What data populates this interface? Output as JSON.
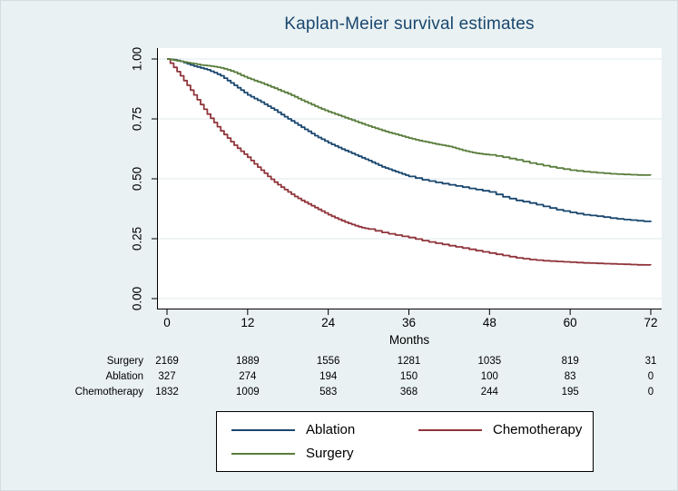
{
  "chart_data": {
    "type": "line",
    "subtype": "kaplan-meier-step",
    "title": "Kaplan-Meier survival estimates",
    "xlabel": "Months",
    "ylabel": "",
    "xlim": [
      0,
      72
    ],
    "ylim": [
      0.0,
      1.0
    ],
    "xticks": [
      0,
      12,
      24,
      36,
      48,
      60,
      72
    ],
    "yticks": [
      "0.00",
      "0.25",
      "0.50",
      "0.75",
      "1.00"
    ],
    "grid": "horizontal",
    "legend_position": "bottom-center",
    "colors": {
      "figure_background": "#e9f1f2",
      "plot_background": "#ffffff",
      "gridline": "#dfeaed",
      "axis": "#000000",
      "title": "#1a476f"
    },
    "series": [
      {
        "name": "Ablation",
        "color": "#1a476f",
        "x": [
          0,
          1,
          2,
          3,
          4,
          5,
          6,
          7,
          8,
          9,
          10,
          11,
          12,
          13,
          14,
          15,
          16,
          17,
          18,
          19,
          20,
          21,
          22,
          23,
          24,
          25,
          26,
          27,
          28,
          29,
          30,
          31,
          32,
          33,
          34,
          35,
          36,
          38,
          40,
          42,
          44,
          46,
          48,
          50,
          52,
          54,
          56,
          58,
          60,
          62,
          64,
          66,
          68,
          70,
          72
        ],
        "y": [
          1.0,
          0.997,
          0.99,
          0.98,
          0.97,
          0.963,
          0.955,
          0.943,
          0.93,
          0.91,
          0.89,
          0.87,
          0.85,
          0.835,
          0.82,
          0.803,
          0.787,
          0.768,
          0.75,
          0.733,
          0.715,
          0.698,
          0.68,
          0.665,
          0.65,
          0.637,
          0.624,
          0.612,
          0.6,
          0.588,
          0.576,
          0.563,
          0.55,
          0.54,
          0.53,
          0.52,
          0.51,
          0.496,
          0.485,
          0.475,
          0.465,
          0.455,
          0.445,
          0.425,
          0.41,
          0.399,
          0.385,
          0.371,
          0.36,
          0.35,
          0.344,
          0.336,
          0.33,
          0.325,
          0.32
        ]
      },
      {
        "name": "Chemotherapy",
        "color": "#90353b",
        "x": [
          0,
          1,
          2,
          3,
          4,
          5,
          6,
          7,
          8,
          9,
          10,
          11,
          12,
          13,
          14,
          15,
          16,
          17,
          18,
          19,
          20,
          21,
          22,
          23,
          24,
          25,
          26,
          27,
          28,
          29,
          30,
          32,
          34,
          36,
          38,
          40,
          42,
          44,
          46,
          48,
          50,
          52,
          54,
          56,
          58,
          60,
          62,
          64,
          66,
          68,
          70,
          72
        ],
        "y": [
          1.0,
          0.965,
          0.93,
          0.89,
          0.85,
          0.81,
          0.77,
          0.735,
          0.7,
          0.67,
          0.64,
          0.615,
          0.59,
          0.562,
          0.536,
          0.51,
          0.486,
          0.465,
          0.445,
          0.426,
          0.41,
          0.395,
          0.38,
          0.365,
          0.35,
          0.337,
          0.325,
          0.314,
          0.304,
          0.296,
          0.29,
          0.276,
          0.265,
          0.255,
          0.242,
          0.231,
          0.221,
          0.211,
          0.2,
          0.19,
          0.18,
          0.17,
          0.163,
          0.158,
          0.155,
          0.152,
          0.149,
          0.147,
          0.145,
          0.143,
          0.141,
          0.14
        ]
      },
      {
        "name": "Surgery",
        "color": "#5a7d3c",
        "x": [
          0,
          1,
          2,
          3,
          4,
          5,
          6,
          7,
          8,
          9,
          10,
          11,
          12,
          13,
          14,
          15,
          16,
          17,
          18,
          19,
          20,
          21,
          22,
          23,
          24,
          25,
          26,
          27,
          28,
          29,
          30,
          31,
          32,
          33,
          34,
          35,
          36,
          37,
          38,
          39,
          40,
          41,
          42,
          43,
          44,
          45,
          46,
          47,
          48,
          50,
          52,
          54,
          56,
          58,
          60,
          62,
          64,
          66,
          68,
          70,
          72
        ],
        "y": [
          1.0,
          0.995,
          0.99,
          0.985,
          0.98,
          0.975,
          0.972,
          0.968,
          0.963,
          0.955,
          0.945,
          0.932,
          0.92,
          0.91,
          0.9,
          0.889,
          0.878,
          0.866,
          0.855,
          0.842,
          0.828,
          0.816,
          0.803,
          0.791,
          0.78,
          0.77,
          0.76,
          0.75,
          0.74,
          0.73,
          0.72,
          0.711,
          0.702,
          0.693,
          0.686,
          0.678,
          0.67,
          0.663,
          0.657,
          0.651,
          0.645,
          0.64,
          0.635,
          0.627,
          0.619,
          0.612,
          0.607,
          0.603,
          0.6,
          0.59,
          0.579,
          0.566,
          0.555,
          0.545,
          0.536,
          0.53,
          0.525,
          0.521,
          0.518,
          0.516,
          0.515
        ]
      }
    ],
    "at_risk_table": {
      "x": [
        0,
        12,
        24,
        36,
        48,
        60,
        72
      ],
      "rows": [
        {
          "label": "Surgery",
          "counts": [
            "2169",
            "1889",
            "1556",
            "1281",
            "1035",
            "819",
            "31"
          ]
        },
        {
          "label": "Ablation",
          "counts": [
            "327",
            "274",
            "194",
            "150",
            "100",
            "83",
            "0"
          ]
        },
        {
          "label": "Chemotherapy",
          "counts": [
            "1832",
            "1009",
            "583",
            "368",
            "244",
            "195",
            "0"
          ]
        }
      ]
    },
    "legend": {
      "entries": [
        {
          "label": "Ablation",
          "color": "#1a476f"
        },
        {
          "label": "Chemotherapy",
          "color": "#90353b"
        },
        {
          "label": "Surgery",
          "color": "#5a7d3c"
        }
      ]
    }
  }
}
